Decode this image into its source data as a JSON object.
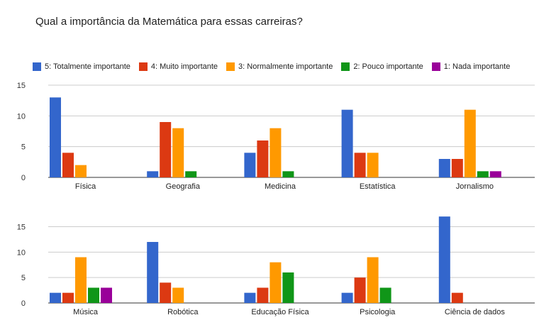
{
  "title": "Qual a importância da Matemática para essas carreiras?",
  "colors": {
    "s5": "#3366cc",
    "s4": "#dc3912",
    "s3": "#ff9900",
    "s2": "#109618",
    "s1": "#990099",
    "grid": "#cccccc",
    "axis": "#333333"
  },
  "legend": [
    {
      "name": "5: Totalmente importante",
      "color": "#3366cc"
    },
    {
      "name": "4: Muito importante",
      "color": "#dc3912"
    },
    {
      "name": "3: Normalmente importante",
      "color": "#ff9900"
    },
    {
      "name": "2: Pouco importante",
      "color": "#109618"
    },
    {
      "name": "1: Nada importante",
      "color": "#990099"
    }
  ],
  "chart_data": [
    {
      "type": "bar",
      "categories": [
        "Física",
        "Geografia",
        "Medicina",
        "Estatística",
        "Jornalismo"
      ],
      "yticks": [
        0,
        5,
        10,
        15
      ],
      "ylim": [
        0,
        15
      ],
      "series": [
        {
          "name": "5: Totalmente importante",
          "values": [
            13,
            1,
            4,
            11,
            3
          ]
        },
        {
          "name": "4: Muito importante",
          "values": [
            4,
            9,
            6,
            4,
            3
          ]
        },
        {
          "name": "3: Normalmente importante",
          "values": [
            2,
            8,
            8,
            4,
            11
          ]
        },
        {
          "name": "2: Pouco importante",
          "values": [
            0,
            1,
            1,
            0,
            1
          ]
        },
        {
          "name": "1: Nada importante",
          "values": [
            0,
            0,
            0,
            0,
            1
          ]
        }
      ]
    },
    {
      "type": "bar",
      "categories": [
        "Música",
        "Robótica",
        "Educação Física",
        "Psicologia",
        "Ciência de dados"
      ],
      "yticks": [
        0,
        5,
        10,
        15
      ],
      "ylim": [
        0,
        18
      ],
      "series": [
        {
          "name": "5: Totalmente importante",
          "values": [
            2,
            12,
            2,
            2,
            17
          ]
        },
        {
          "name": "4: Muito importante",
          "values": [
            2,
            4,
            3,
            5,
            2
          ]
        },
        {
          "name": "3: Normalmente importante",
          "values": [
            9,
            3,
            8,
            9,
            0
          ]
        },
        {
          "name": "2: Pouco importante",
          "values": [
            3,
            0,
            6,
            3,
            0
          ]
        },
        {
          "name": "1: Nada importante",
          "values": [
            3,
            0,
            0,
            0,
            0
          ]
        }
      ]
    }
  ]
}
